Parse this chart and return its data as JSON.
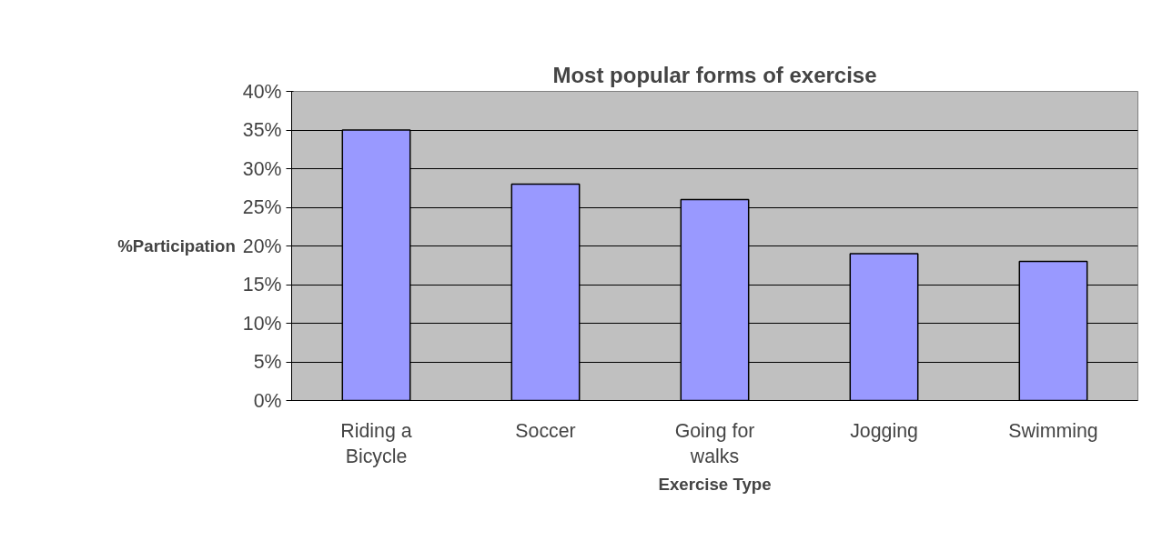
{
  "chart_data": {
    "type": "bar",
    "title": "Most popular forms of exercise",
    "xlabel": "Exercise Type",
    "ylabel": "%Participation",
    "categories": [
      "Riding a Bicycle",
      "Soccer",
      "Going for walks",
      "Jogging",
      "Swimming"
    ],
    "values": [
      35,
      28,
      26,
      19,
      18
    ],
    "color": "#9999ff",
    "ylim": [
      0,
      40
    ],
    "yticks": [
      {
        "value": 0,
        "label": "0%"
      },
      {
        "value": 5,
        "label": "5%"
      },
      {
        "value": 10,
        "label": "10%"
      },
      {
        "value": 15,
        "label": "15%"
      },
      {
        "value": 20,
        "label": "20%"
      },
      {
        "value": 25,
        "label": "25%"
      },
      {
        "value": 30,
        "label": "30%"
      },
      {
        "value": 35,
        "label": "35%"
      },
      {
        "value": 40,
        "label": "40%"
      }
    ],
    "grid": "y"
  }
}
